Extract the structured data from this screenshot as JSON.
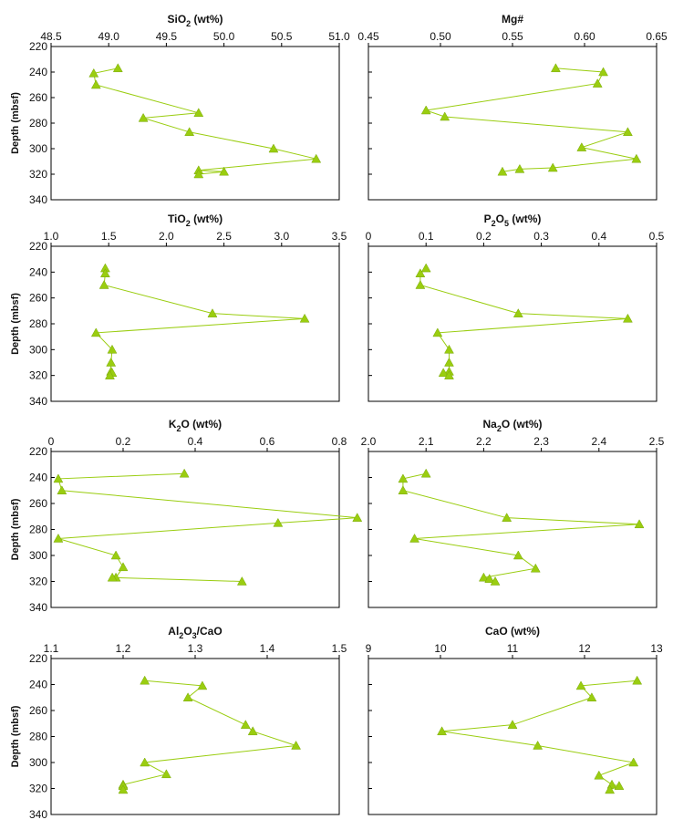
{
  "chart_data": [
    {
      "type": "line",
      "title": "SiO",
      "title_sub": "2",
      "title_rest": " (wt%)",
      "ylabel": "Depth (mbsf)",
      "xlim": [
        48.5,
        51.0
      ],
      "ylim": [
        340,
        220
      ],
      "xticks": [
        "48.5",
        "49.0",
        "49.5",
        "50.0",
        "50.5",
        "51.0"
      ],
      "yticks": [
        "220",
        "240",
        "260",
        "280",
        "300",
        "320",
        "340"
      ],
      "color": "#9acd10",
      "series": [
        {
          "x": [
            49.08,
            48.87,
            48.89,
            49.78,
            49.3,
            49.7,
            50.43,
            50.8,
            49.78,
            50.0,
            49.78
          ],
          "y": [
            237,
            241,
            250,
            272,
            276,
            287,
            300,
            308,
            317,
            318,
            320
          ]
        }
      ]
    },
    {
      "type": "line",
      "title": "Mg#",
      "ylabel": "",
      "xlim": [
        0.45,
        0.65
      ],
      "ylim": [
        340,
        220
      ],
      "xticks": [
        "0.45",
        "0.50",
        "0.55",
        "0.60",
        "0.65"
      ],
      "yticks": [],
      "color": "#9acd10",
      "series": [
        {
          "x": [
            0.58,
            0.613,
            0.609,
            0.49,
            0.503,
            0.63,
            0.598,
            0.636,
            0.578,
            0.555,
            0.543
          ],
          "y": [
            237,
            240,
            249,
            270,
            275,
            287,
            299,
            308,
            315,
            316,
            318
          ]
        }
      ]
    },
    {
      "type": "line",
      "title": "TiO",
      "title_sub": "2",
      "title_rest": " (wt%)",
      "ylabel": "Depth (mbsf)",
      "xlim": [
        1.0,
        3.5
      ],
      "ylim": [
        340,
        220
      ],
      "xticks": [
        "1.0",
        "1.5",
        "2.0",
        "2.5",
        "3.0",
        "3.5"
      ],
      "yticks": [
        "220",
        "240",
        "260",
        "280",
        "300",
        "320",
        "340"
      ],
      "color": "#9acd10",
      "series": [
        {
          "x": [
            1.47,
            1.47,
            1.46,
            2.4,
            3.2,
            1.39,
            1.53,
            1.52,
            1.52,
            1.53,
            1.51
          ],
          "y": [
            237,
            241,
            250,
            272,
            276,
            287,
            300,
            310,
            317,
            318,
            320
          ]
        }
      ]
    },
    {
      "type": "line",
      "title": "P",
      "title_sub": "2",
      "title_mid": "O",
      "title_sub2": "5",
      "title_rest": " (wt%)",
      "ylabel": "",
      "xlim": [
        0,
        0.5
      ],
      "ylim": [
        340,
        220
      ],
      "xticks": [
        "0",
        "0.1",
        "0.2",
        "0.3",
        "0.4",
        "0.5"
      ],
      "yticks": [],
      "color": "#9acd10",
      "series": [
        {
          "x": [
            0.1,
            0.09,
            0.09,
            0.26,
            0.45,
            0.12,
            0.14,
            0.14,
            0.14,
            0.13,
            0.14
          ],
          "y": [
            237,
            241,
            250,
            272,
            276,
            287,
            300,
            310,
            317,
            318,
            320
          ]
        }
      ]
    },
    {
      "type": "line",
      "title": "K",
      "title_sub": "2",
      "title_rest": "O (wt%)",
      "ylabel": "Depth (mbsf)",
      "xlim": [
        0,
        0.8
      ],
      "ylim": [
        340,
        220
      ],
      "xticks": [
        "0",
        "0.2",
        "0.4",
        "0.6",
        "0.8"
      ],
      "yticks": [
        "220",
        "240",
        "260",
        "280",
        "300",
        "320",
        "340"
      ],
      "color": "#9acd10",
      "series": [
        {
          "x": [
            0.37,
            0.02,
            0.03,
            0.85,
            0.63,
            0.02,
            0.18,
            0.2,
            0.18,
            0.17,
            0.53
          ],
          "y": [
            237,
            241,
            250,
            271,
            275,
            287,
            300,
            309,
            317,
            317,
            320
          ]
        }
      ]
    },
    {
      "type": "line",
      "title": "Na",
      "title_sub": "2",
      "title_rest": "O (wt%)",
      "ylabel": "",
      "xlim": [
        2.0,
        2.5
      ],
      "ylim": [
        340,
        220
      ],
      "xticks": [
        "2.0",
        "2.1",
        "2.2",
        "2.3",
        "2.4",
        "2.5"
      ],
      "yticks": [],
      "color": "#9acd10",
      "series": [
        {
          "x": [
            2.1,
            2.06,
            2.06,
            2.24,
            2.47,
            2.08,
            2.26,
            2.29,
            2.2,
            2.21,
            2.22
          ],
          "y": [
            237,
            241,
            250,
            271,
            276,
            287,
            300,
            310,
            317,
            318,
            320
          ]
        }
      ]
    },
    {
      "type": "line",
      "title": "Al",
      "title_sub": "2",
      "title_mid": "O",
      "title_sub2": "3",
      "title_rest": "/CaO",
      "ylabel": "Depth (mbsf)",
      "xlim": [
        1.1,
        1.5
      ],
      "ylim": [
        340,
        220
      ],
      "xticks": [
        "1.1",
        "1.2",
        "1.3",
        "1.4",
        "1.5"
      ],
      "yticks": [
        "220",
        "240",
        "260",
        "280",
        "300",
        "320",
        "340"
      ],
      "color": "#9acd10",
      "series": [
        {
          "x": [
            1.23,
            1.31,
            1.29,
            1.37,
            1.38,
            1.44,
            1.23,
            1.26,
            1.2,
            1.2,
            1.2
          ],
          "y": [
            237,
            241,
            250,
            271,
            276,
            287,
            300,
            309,
            317,
            318,
            321
          ]
        }
      ]
    },
    {
      "type": "line",
      "title": "CaO (wt%)",
      "ylabel": "",
      "xlim": [
        9,
        13
      ],
      "ylim": [
        340,
        220
      ],
      "xticks": [
        "9",
        "10",
        "11",
        "12",
        "13"
      ],
      "yticks": [],
      "color": "#9acd10",
      "series": [
        {
          "x": [
            12.73,
            11.95,
            12.1,
            11.0,
            10.02,
            11.35,
            12.68,
            12.2,
            12.38,
            12.48,
            12.35
          ],
          "y": [
            237,
            241,
            250,
            271,
            276,
            287,
            300,
            310,
            317,
            318,
            321
          ]
        }
      ]
    }
  ]
}
